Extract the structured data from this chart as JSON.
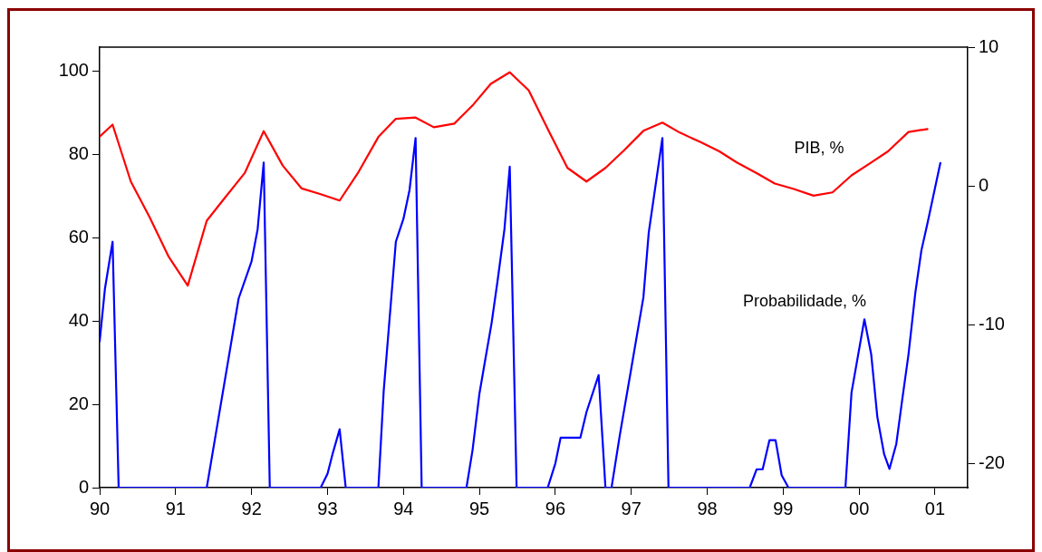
{
  "chart_data": {
    "type": "line",
    "xlim": [
      1990,
      2001.43
    ],
    "xticks": [
      {
        "value": 1990,
        "label": "90"
      },
      {
        "value": 1991,
        "label": "91"
      },
      {
        "value": 1992,
        "label": "92"
      },
      {
        "value": 1993,
        "label": "93"
      },
      {
        "value": 1994,
        "label": "94"
      },
      {
        "value": 1995,
        "label": "95"
      },
      {
        "value": 1996,
        "label": "96"
      },
      {
        "value": 1997,
        "label": "97"
      },
      {
        "value": 1998,
        "label": "98"
      },
      {
        "value": 1999,
        "label": "99"
      },
      {
        "value": 2000,
        "label": "00"
      },
      {
        "value": 2001,
        "label": "01"
      }
    ],
    "ylim": [
      0,
      105.7
    ],
    "yticks": [
      0,
      20,
      40,
      60,
      80,
      100
    ],
    "y2lim": [
      -21.73,
      10
    ],
    "y2ticks": [
      -20,
      -10,
      0,
      10
    ],
    "grid": false,
    "legend": false,
    "marker": "none",
    "line_style": "solid",
    "series": [
      {
        "name": "PIB, %",
        "color": "#ff0000",
        "axis": "y2",
        "x": [
          1990.0,
          1990.17,
          1990.41,
          1990.66,
          1990.91,
          1991.16,
          1991.41,
          1991.66,
          1991.91,
          1992.16,
          1992.41,
          1992.66,
          1992.91,
          1993.16,
          1993.41,
          1993.67,
          1993.9,
          1994.16,
          1994.4,
          1994.67,
          1994.92,
          1995.15,
          1995.4,
          1995.65,
          1995.91,
          1996.16,
          1996.41,
          1996.66,
          1996.9,
          1997.16,
          1997.41,
          1997.64,
          1997.9,
          1998.16,
          1998.39,
          1998.65,
          1998.89,
          1999.14,
          1999.4,
          1999.65,
          1999.9,
          2000.14,
          2000.38,
          2000.65,
          2000.9
        ],
        "values": [
          3.56,
          4.42,
          0.32,
          -2.28,
          -5.11,
          -7.18,
          -2.5,
          -0.77,
          0.93,
          3.95,
          1.47,
          -0.18,
          -0.59,
          -1.05,
          1.02,
          3.53,
          4.84,
          4.93,
          4.23,
          4.49,
          5.86,
          7.36,
          8.19,
          6.88,
          4.0,
          1.3,
          0.32,
          1.3,
          2.54,
          3.97,
          4.56,
          3.84,
          3.19,
          2.49,
          1.69,
          0.93,
          0.17,
          -0.22,
          -0.7,
          -0.46,
          0.76,
          1.62,
          2.49,
          3.89,
          4.1
        ]
      },
      {
        "name": "Probabilidade, %",
        "color": "#0000ff",
        "axis": "y",
        "x": [
          1990.0,
          1990.07,
          1990.17,
          1990.25,
          1991.41,
          1991.83,
          1992.0,
          1992.08,
          1992.16,
          1992.24,
          1992.91,
          1993.0,
          1993.07,
          1993.16,
          1993.24,
          1993.67,
          1993.74,
          1993.9,
          1994.0,
          1994.08,
          1994.16,
          1994.24,
          1994.83,
          1994.91,
          1995.0,
          1995.08,
          1995.16,
          1995.24,
          1995.33,
          1995.4,
          1995.49,
          1995.9,
          1996.0,
          1996.07,
          1996.33,
          1996.41,
          1996.57,
          1996.66,
          1996.74,
          1996.85,
          1997.0,
          1997.16,
          1997.23,
          1997.41,
          1997.49,
          1998.56,
          1998.65,
          1998.73,
          1998.82,
          1998.9,
          1998.98,
          1999.07,
          1999.82,
          1999.9,
          2000.07,
          2000.16,
          2000.24,
          2000.33,
          2000.4,
          2000.49,
          2000.57,
          2000.65,
          2000.74,
          2000.82,
          2000.9,
          2001.07
        ],
        "values": [
          35.1,
          47.8,
          59.0,
          0,
          0,
          45.4,
          54.3,
          62.0,
          78.0,
          0,
          0,
          3.3,
          8.3,
          14.0,
          0,
          0,
          23.2,
          59.0,
          64.5,
          71.4,
          83.9,
          0,
          0,
          9.0,
          22.5,
          31.0,
          39.4,
          49.7,
          62.0,
          77.0,
          0,
          0,
          5.8,
          12.0,
          12.0,
          18.1,
          27.0,
          0,
          0,
          12.7,
          28.6,
          45.7,
          61.2,
          83.9,
          0,
          0,
          4.4,
          4.4,
          11.4,
          11.4,
          3.0,
          0,
          0,
          22.8,
          40.4,
          31.9,
          17.0,
          8.0,
          4.5,
          10.5,
          21.4,
          31.9,
          46.7,
          56.9,
          63.4,
          77.9
        ]
      }
    ]
  }
}
